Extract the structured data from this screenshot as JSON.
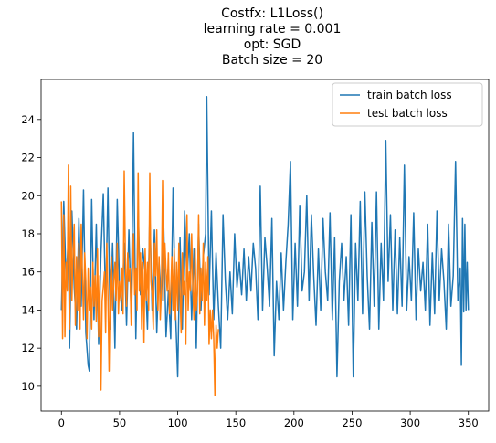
{
  "chart_data": {
    "type": "line",
    "title_lines": [
      "Costfx: L1Loss()",
      "learning rate = 0.001",
      "opt: SGD",
      "Batch size = 20"
    ],
    "xlabel": "",
    "ylabel": "",
    "xlim": [
      -17.5,
      367.5
    ],
    "ylim": [
      8.7,
      26.1
    ],
    "xticks": [
      0,
      50,
      100,
      150,
      200,
      250,
      300,
      350
    ],
    "yticks": [
      10,
      12,
      14,
      16,
      18,
      20,
      22,
      24
    ],
    "grid": false,
    "legend_position": "top-right",
    "colors": {
      "train": "#1f77b4",
      "test": "#ff7f0e"
    },
    "series": [
      {
        "name": "train batch loss",
        "points": [
          [
            0,
            14.0
          ],
          [
            2,
            19.7
          ],
          [
            4,
            15.5
          ],
          [
            6,
            17.8
          ],
          [
            7,
            12.0
          ],
          [
            9,
            19.2
          ],
          [
            11,
            15.2
          ],
          [
            13,
            13.0
          ],
          [
            15,
            18.8
          ],
          [
            17,
            14.2
          ],
          [
            19,
            20.3
          ],
          [
            21,
            12.8
          ],
          [
            23,
            11.1
          ],
          [
            24,
            10.8
          ],
          [
            26,
            19.8
          ],
          [
            28,
            13.5
          ],
          [
            30,
            18.5
          ],
          [
            32,
            12.2
          ],
          [
            34,
            17.0
          ],
          [
            36,
            20.1
          ],
          [
            38,
            14.2
          ],
          [
            40,
            20.4
          ],
          [
            42,
            13.0
          ],
          [
            44,
            17.5
          ],
          [
            46,
            12.0
          ],
          [
            48,
            19.8
          ],
          [
            50,
            15.2
          ],
          [
            52,
            14.0
          ],
          [
            54,
            17.5
          ],
          [
            56,
            13.2
          ],
          [
            58,
            18.2
          ],
          [
            60,
            13.8
          ],
          [
            62,
            23.3
          ],
          [
            64,
            12.5
          ],
          [
            66,
            19.2
          ],
          [
            68,
            14.8
          ],
          [
            70,
            17.2
          ],
          [
            72,
            16.0
          ],
          [
            74,
            13.0
          ],
          [
            76,
            19.1
          ],
          [
            78,
            14.0
          ],
          [
            80,
            18.2
          ],
          [
            82,
            12.8
          ],
          [
            84,
            16.5
          ],
          [
            86,
            14.5
          ],
          [
            88,
            18.3
          ],
          [
            90,
            12.6
          ],
          [
            92,
            15.0
          ],
          [
            94,
            12.5
          ],
          [
            96,
            20.4
          ],
          [
            98,
            14.2
          ],
          [
            100,
            10.5
          ],
          [
            102,
            17.8
          ],
          [
            104,
            13.0
          ],
          [
            106,
            19.2
          ],
          [
            108,
            15.5
          ],
          [
            110,
            18.0
          ],
          [
            112,
            13.5
          ],
          [
            114,
            17.2
          ],
          [
            116,
            12.0
          ],
          [
            118,
            18.5
          ],
          [
            120,
            14.0
          ],
          [
            122,
            16.8
          ],
          [
            124,
            18.0
          ],
          [
            125,
            25.2
          ],
          [
            127,
            14.8
          ],
          [
            129,
            19.2
          ],
          [
            131,
            13.5
          ],
          [
            133,
            17.0
          ],
          [
            135,
            14.2
          ],
          [
            137,
            12.0
          ],
          [
            139,
            19.0
          ],
          [
            141,
            15.5
          ],
          [
            143,
            13.5
          ],
          [
            145,
            16.0
          ],
          [
            147,
            13.8
          ],
          [
            149,
            18.0
          ],
          [
            151,
            15.2
          ],
          [
            153,
            16.5
          ],
          [
            155,
            14.8
          ],
          [
            157,
            17.2
          ],
          [
            159,
            14.5
          ],
          [
            161,
            16.8
          ],
          [
            163,
            15.0
          ],
          [
            165,
            17.5
          ],
          [
            167,
            16.2
          ],
          [
            169,
            13.5
          ],
          [
            171,
            20.5
          ],
          [
            173,
            14.0
          ],
          [
            175,
            17.8
          ],
          [
            177,
            16.2
          ],
          [
            179,
            14.2
          ],
          [
            181,
            18.8
          ],
          [
            183,
            11.6
          ],
          [
            185,
            15.5
          ],
          [
            187,
            13.5
          ],
          [
            189,
            17.0
          ],
          [
            191,
            14.0
          ],
          [
            193,
            16.5
          ],
          [
            195,
            18.5
          ],
          [
            197,
            21.8
          ],
          [
            199,
            13.5
          ],
          [
            201,
            17.5
          ],
          [
            203,
            14.2
          ],
          [
            205,
            19.5
          ],
          [
            207,
            15.0
          ],
          [
            209,
            16.0
          ],
          [
            211,
            20.0
          ],
          [
            213,
            14.5
          ],
          [
            215,
            19.0
          ],
          [
            217,
            15.8
          ],
          [
            219,
            13.2
          ],
          [
            221,
            17.2
          ],
          [
            223,
            14.0
          ],
          [
            225,
            18.8
          ],
          [
            227,
            16.0
          ],
          [
            229,
            14.5
          ],
          [
            231,
            19.1
          ],
          [
            233,
            13.5
          ],
          [
            235,
            17.8
          ],
          [
            237,
            10.5
          ],
          [
            239,
            15.5
          ],
          [
            241,
            17.5
          ],
          [
            243,
            14.5
          ],
          [
            245,
            16.8
          ],
          [
            247,
            13.2
          ],
          [
            249,
            19.0
          ],
          [
            251,
            10.5
          ],
          [
            253,
            17.5
          ],
          [
            255,
            14.5
          ],
          [
            257,
            19.7
          ],
          [
            259,
            13.8
          ],
          [
            261,
            20.2
          ],
          [
            263,
            15.8
          ],
          [
            265,
            13.0
          ],
          [
            267,
            18.6
          ],
          [
            269,
            14.2
          ],
          [
            271,
            20.2
          ],
          [
            273,
            13.0
          ],
          [
            275,
            17.5
          ],
          [
            277,
            14.5
          ],
          [
            279,
            22.9
          ],
          [
            281,
            15.5
          ],
          [
            283,
            19.0
          ],
          [
            285,
            14.0
          ],
          [
            287,
            18.2
          ],
          [
            289,
            13.8
          ],
          [
            291,
            17.8
          ],
          [
            293,
            14.2
          ],
          [
            295,
            21.6
          ],
          [
            297,
            14.0
          ],
          [
            299,
            16.8
          ],
          [
            301,
            14.5
          ],
          [
            303,
            19.1
          ],
          [
            305,
            13.5
          ],
          [
            307,
            17.2
          ],
          [
            309,
            15.0
          ],
          [
            311,
            16.5
          ],
          [
            313,
            14.0
          ],
          [
            315,
            18.5
          ],
          [
            317,
            13.2
          ],
          [
            319,
            17.0
          ],
          [
            321,
            13.8
          ],
          [
            323,
            19.2
          ],
          [
            325,
            14.5
          ],
          [
            327,
            17.2
          ],
          [
            329,
            15.5
          ],
          [
            331,
            13.0
          ],
          [
            333,
            18.5
          ],
          [
            335,
            14.2
          ],
          [
            337,
            15.8
          ],
          [
            339,
            21.8
          ],
          [
            341,
            14.5
          ],
          [
            343,
            16.2
          ],
          [
            344,
            11.1
          ],
          [
            345,
            18.8
          ],
          [
            346,
            13.9
          ],
          [
            347,
            18.5
          ],
          [
            348,
            14.0
          ],
          [
            349,
            16.5
          ],
          [
            350,
            14.0
          ]
        ]
      },
      {
        "name": "test batch loss",
        "points": [
          [
            0,
            19.7
          ],
          [
            1,
            12.5
          ],
          [
            2,
            19.0
          ],
          [
            3,
            12.6
          ],
          [
            4,
            16.5
          ],
          [
            5,
            15.0
          ],
          [
            6,
            21.6
          ],
          [
            7,
            13.0
          ],
          [
            8,
            20.5
          ],
          [
            9,
            14.5
          ],
          [
            10,
            17.0
          ],
          [
            11,
            18.5
          ],
          [
            12,
            13.2
          ],
          [
            13,
            16.8
          ],
          [
            14,
            14.0
          ],
          [
            15,
            17.5
          ],
          [
            16,
            13.0
          ],
          [
            17,
            18.5
          ],
          [
            18,
            16.0
          ],
          [
            19,
            13.5
          ],
          [
            20,
            17.0
          ],
          [
            21,
            15.5
          ],
          [
            22,
            12.5
          ],
          [
            23,
            16.2
          ],
          [
            24,
            14.0
          ],
          [
            25,
            15.2
          ],
          [
            26,
            13.0
          ],
          [
            27,
            16.5
          ],
          [
            28,
            14.2
          ],
          [
            29,
            15.8
          ],
          [
            30,
            13.4
          ],
          [
            31,
            17.2
          ],
          [
            32,
            12.6
          ],
          [
            33,
            15.8
          ],
          [
            34,
            9.8
          ],
          [
            35,
            14.5
          ],
          [
            36,
            15.2
          ],
          [
            37,
            16.0
          ],
          [
            38,
            12.8
          ],
          [
            39,
            17.5
          ],
          [
            40,
            14.8
          ],
          [
            41,
            10.8
          ],
          [
            42,
            15.5
          ],
          [
            43,
            16.8
          ],
          [
            44,
            14.0
          ],
          [
            45,
            15.5
          ],
          [
            46,
            16.5
          ],
          [
            47,
            14.5
          ],
          [
            48,
            17.5
          ],
          [
            49,
            13.8
          ],
          [
            50,
            15.5
          ],
          [
            51,
            14.5
          ],
          [
            52,
            16.2
          ],
          [
            53,
            13.8
          ],
          [
            54,
            21.3
          ],
          [
            55,
            16.8
          ],
          [
            56,
            14.2
          ],
          [
            57,
            17.0
          ],
          [
            58,
            15.5
          ],
          [
            59,
            16.2
          ],
          [
            60,
            13.2
          ],
          [
            61,
            15.8
          ],
          [
            62,
            18.0
          ],
          [
            63,
            14.8
          ],
          [
            64,
            16.2
          ],
          [
            65,
            14.0
          ],
          [
            66,
            21.2
          ],
          [
            67,
            15.0
          ],
          [
            68,
            17.0
          ],
          [
            69,
            13.0
          ],
          [
            70,
            16.5
          ],
          [
            71,
            12.3
          ],
          [
            72,
            17.2
          ],
          [
            73,
            14.5
          ],
          [
            74,
            16.5
          ],
          [
            75,
            14.0
          ],
          [
            76,
            21.2
          ],
          [
            77,
            15.5
          ],
          [
            78,
            14.8
          ],
          [
            79,
            13.0
          ],
          [
            80,
            17.5
          ],
          [
            81,
            15.8
          ],
          [
            82,
            18.2
          ],
          [
            83,
            14.0
          ],
          [
            84,
            16.8
          ],
          [
            85,
            13.5
          ],
          [
            86,
            15.0
          ],
          [
            87,
            20.8
          ],
          [
            88,
            14.5
          ],
          [
            89,
            17.5
          ],
          [
            90,
            16.0
          ],
          [
            91,
            15.0
          ],
          [
            92,
            17.0
          ],
          [
            93,
            13.8
          ],
          [
            94,
            15.0
          ],
          [
            95,
            16.8
          ],
          [
            96,
            14.0
          ],
          [
            97,
            17.2
          ],
          [
            98,
            13.5
          ],
          [
            99,
            16.5
          ],
          [
            100,
            14.0
          ],
          [
            101,
            17.5
          ],
          [
            102,
            15.0
          ],
          [
            103,
            12.8
          ],
          [
            104,
            17.0
          ],
          [
            105,
            14.8
          ],
          [
            106,
            15.5
          ],
          [
            107,
            12.2
          ],
          [
            108,
            19.0
          ],
          [
            109,
            14.0
          ],
          [
            110,
            16.0
          ],
          [
            111,
            15.0
          ],
          [
            112,
            18.0
          ],
          [
            113,
            15.2
          ],
          [
            114,
            13.5
          ],
          [
            115,
            17.2
          ],
          [
            116,
            14.0
          ],
          [
            117,
            15.0
          ],
          [
            118,
            19.0
          ],
          [
            119,
            13.8
          ],
          [
            120,
            16.2
          ],
          [
            121,
            14.5
          ],
          [
            122,
            17.5
          ],
          [
            123,
            13.2
          ],
          [
            124,
            16.5
          ],
          [
            125,
            14.5
          ],
          [
            126,
            16.8
          ],
          [
            127,
            12.2
          ],
          [
            128,
            14.0
          ],
          [
            129,
            12.5
          ],
          [
            130,
            14.0
          ],
          [
            131,
            12.5
          ],
          [
            132,
            9.5
          ],
          [
            133,
            13.2
          ],
          [
            134,
            12.0
          ],
          [
            135,
            13.0
          ]
        ]
      }
    ]
  }
}
